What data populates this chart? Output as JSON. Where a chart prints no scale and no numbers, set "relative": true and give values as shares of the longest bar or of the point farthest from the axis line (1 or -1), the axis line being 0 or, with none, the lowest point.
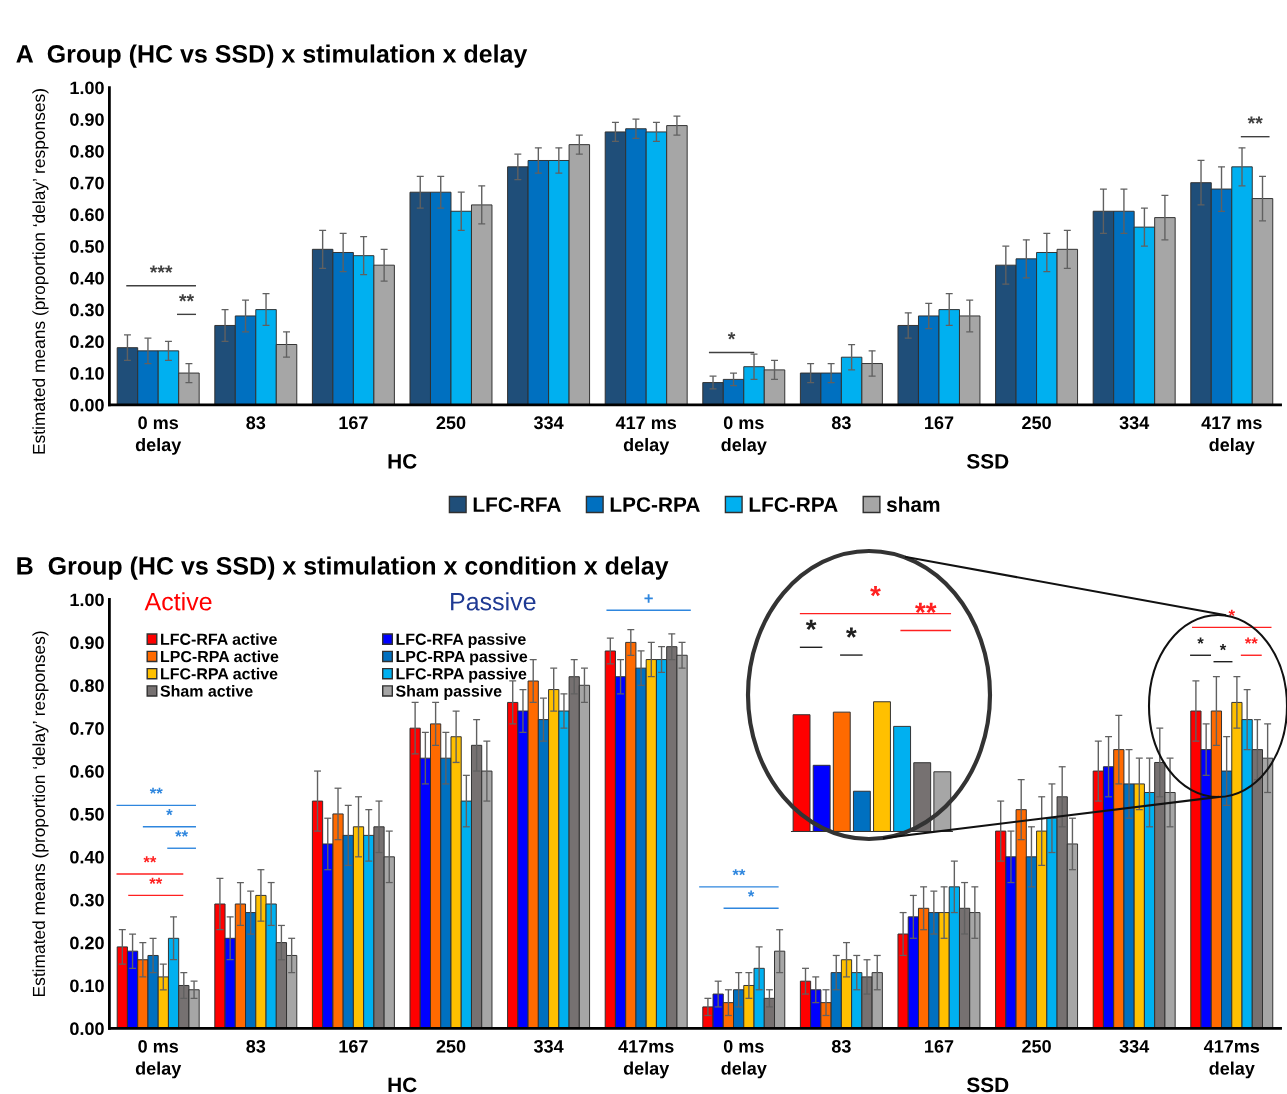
{
  "chart_data": [
    {
      "type": "bar",
      "title": "A  Group (HC vs SSD) x stimulation x delay",
      "ylabel": "Estimated means (proportion ‘delay’ responses)",
      "categories": [
        "0 ms\ndelay",
        "83",
        "167",
        "250",
        "334",
        "417 ms\ndelay",
        "0 ms\ndelay",
        "83",
        "167",
        "250",
        "334",
        "417 ms\ndelay"
      ],
      "series": [
        {
          "name": "LFC-RFA",
          "color": "#1f4e79",
          "values": [
            0.18,
            0.25,
            0.49,
            0.67,
            0.75,
            0.86,
            0.07,
            0.1,
            0.25,
            0.44,
            0.61,
            0.7
          ],
          "errors": [
            0.04,
            0.05,
            0.06,
            0.05,
            0.04,
            0.03,
            0.02,
            0.03,
            0.04,
            0.06,
            0.07,
            0.07
          ]
        },
        {
          "name": "LPC-RPA",
          "color": "#0070c0",
          "values": [
            0.17,
            0.28,
            0.48,
            0.67,
            0.77,
            0.87,
            0.08,
            0.1,
            0.28,
            0.46,
            0.61,
            0.68
          ],
          "errors": [
            0.04,
            0.05,
            0.06,
            0.05,
            0.04,
            0.03,
            0.02,
            0.03,
            0.04,
            0.06,
            0.07,
            0.07
          ]
        },
        {
          "name": "LFC-RPA",
          "color": "#00b0f0",
          "values": [
            0.17,
            0.3,
            0.47,
            0.61,
            0.77,
            0.86,
            0.12,
            0.15,
            0.3,
            0.48,
            0.56,
            0.75
          ],
          "errors": [
            0.03,
            0.05,
            0.06,
            0.06,
            0.04,
            0.03,
            0.04,
            0.04,
            0.05,
            0.06,
            0.06,
            0.06
          ]
        },
        {
          "name": "sham",
          "color": "#a6a6a6",
          "values": [
            0.1,
            0.19,
            0.44,
            0.63,
            0.82,
            0.88,
            0.11,
            0.13,
            0.28,
            0.49,
            0.59,
            0.65
          ],
          "errors": [
            0.03,
            0.04,
            0.05,
            0.06,
            0.03,
            0.03,
            0.03,
            0.04,
            0.05,
            0.06,
            0.07,
            0.07
          ]
        }
      ],
      "ylim": [
        0,
        1
      ],
      "yticks": [
        {
          "value": 0,
          "label": "0.00"
        },
        {
          "value": 0.1,
          "label": "0.10"
        },
        {
          "value": 0.2,
          "label": "0.20"
        },
        {
          "value": 0.3,
          "label": "0.30"
        },
        {
          "value": 0.4,
          "label": "0.40"
        },
        {
          "value": 0.5,
          "label": "0.50"
        },
        {
          "value": 0.6,
          "label": "0.60"
        },
        {
          "value": 0.7,
          "label": "0.70"
        },
        {
          "value": 0.8,
          "label": "0.80"
        },
        {
          "value": 0.9,
          "label": "0.90"
        },
        {
          "value": 1,
          "label": "1.00"
        }
      ],
      "grid": false,
      "legend": "bottom",
      "annotations": [
        "***",
        "**",
        "*",
        "**",
        "HC",
        "SSD"
      ]
    },
    {
      "type": "bar",
      "title": "B  Group (HC vs SSD) x stimulation x condition x delay",
      "ylabel": "Estimated means (proportion ‘delay’ responses)",
      "categories": [
        "0 ms\ndelay",
        "83",
        "167",
        "250",
        "334",
        "417ms\ndelay",
        "0 ms\ndelay",
        "83",
        "167",
        "250",
        "334",
        "417ms\ndelay"
      ],
      "series": [
        {
          "name": "LFC-RFA active",
          "color": "#ff0000",
          "values": [
            0.19,
            0.29,
            0.53,
            0.7,
            0.76,
            0.88,
            0.05,
            0.11,
            0.22,
            0.46,
            0.6,
            0.74
          ],
          "errors": [
            0.04,
            0.06,
            0.07,
            0.06,
            0.05,
            0.03,
            0.02,
            0.03,
            0.05,
            0.07,
            0.07,
            0.07
          ]
        },
        {
          "name": "LFC-RFA passive",
          "color": "#0000ff",
          "values": [
            0.18,
            0.21,
            0.43,
            0.63,
            0.74,
            0.82,
            0.08,
            0.09,
            0.26,
            0.4,
            0.61,
            0.65
          ],
          "errors": [
            0.04,
            0.05,
            0.06,
            0.06,
            0.05,
            0.04,
            0.03,
            0.03,
            0.05,
            0.06,
            0.07,
            0.06
          ]
        },
        {
          "name": "LPC-RPA active",
          "color": "#ff6a00",
          "values": [
            0.16,
            0.29,
            0.5,
            0.71,
            0.81,
            0.9,
            0.06,
            0.06,
            0.28,
            0.51,
            0.65,
            0.74
          ],
          "errors": [
            0.04,
            0.05,
            0.06,
            0.05,
            0.05,
            0.03,
            0.03,
            0.03,
            0.05,
            0.07,
            0.08,
            0.08
          ]
        },
        {
          "name": "LPC-RPA passive",
          "color": "#0070c0",
          "values": [
            0.17,
            0.27,
            0.45,
            0.63,
            0.72,
            0.84,
            0.09,
            0.13,
            0.27,
            0.4,
            0.57,
            0.6
          ],
          "errors": [
            0.04,
            0.05,
            0.07,
            0.06,
            0.05,
            0.04,
            0.04,
            0.04,
            0.05,
            0.07,
            0.08,
            0.08
          ]
        },
        {
          "name": "LFC-RPA active",
          "color": "#ffc000",
          "values": [
            0.12,
            0.31,
            0.47,
            0.68,
            0.79,
            0.86,
            0.1,
            0.16,
            0.27,
            0.46,
            0.57,
            0.76
          ],
          "errors": [
            0.03,
            0.06,
            0.07,
            0.06,
            0.05,
            0.04,
            0.03,
            0.04,
            0.06,
            0.08,
            0.06,
            0.06
          ]
        },
        {
          "name": "LFC-RPA passive",
          "color": "#00b0f0",
          "values": [
            0.21,
            0.29,
            0.45,
            0.53,
            0.74,
            0.86,
            0.14,
            0.13,
            0.33,
            0.49,
            0.55,
            0.72
          ],
          "errors": [
            0.05,
            0.05,
            0.06,
            0.06,
            0.04,
            0.03,
            0.05,
            0.04,
            0.06,
            0.08,
            0.08,
            0.07
          ]
        },
        {
          "name": "Sham active",
          "color": "#767171",
          "values": [
            0.1,
            0.2,
            0.47,
            0.66,
            0.82,
            0.89,
            0.07,
            0.12,
            0.28,
            0.54,
            0.62,
            0.65
          ],
          "errors": [
            0.03,
            0.04,
            0.06,
            0.06,
            0.04,
            0.03,
            0.02,
            0.04,
            0.06,
            0.07,
            0.08,
            0.07
          ]
        },
        {
          "name": "Sham passive",
          "color": "#a6a6a6",
          "values": [
            0.09,
            0.17,
            0.4,
            0.6,
            0.8,
            0.87,
            0.18,
            0.13,
            0.27,
            0.43,
            0.55,
            0.63
          ],
          "errors": [
            0.02,
            0.04,
            0.06,
            0.07,
            0.04,
            0.03,
            0.05,
            0.04,
            0.06,
            0.06,
            0.08,
            0.08
          ]
        }
      ],
      "ylim": [
        0,
        1
      ],
      "yticks": [
        {
          "value": 0,
          "label": "0.00"
        },
        {
          "value": 0.1,
          "label": "0.10"
        },
        {
          "value": 0.2,
          "label": "0.20"
        },
        {
          "value": 0.3,
          "label": "0.30"
        },
        {
          "value": 0.4,
          "label": "0.40"
        },
        {
          "value": 0.5,
          "label": "0.50"
        },
        {
          "value": 0.6,
          "label": "0.60"
        },
        {
          "value": 0.7,
          "label": "0.70"
        },
        {
          "value": 0.8,
          "label": "0.80"
        },
        {
          "value": 0.9,
          "label": "0.90"
        },
        {
          "value": 1,
          "label": "1.00"
        }
      ],
      "grid": false,
      "legend": "top left",
      "annotations": [
        "Active",
        "Passive",
        "**",
        "*",
        "**",
        "**",
        "**",
        "+",
        "**",
        "*",
        "*",
        "*",
        "*",
        "**",
        "HC",
        "SSD"
      ]
    },
    {
      "type": "bar",
      "relative": true,
      "categories": [
        null,
        null,
        null,
        null,
        null,
        null,
        null,
        null
      ],
      "values": [
        0.9,
        0.51,
        0.92,
        0.31,
        1.0,
        0.81,
        0.53,
        0.46
      ],
      "colors": [
        "#ff0000",
        "#0000ff",
        "#ff6a00",
        "#0070c0",
        "#ffc000",
        "#00b0f0",
        "#767171",
        "#a6a6a6"
      ],
      "annotations": [
        "*",
        "*",
        "*",
        "**"
      ]
    }
  ]
}
